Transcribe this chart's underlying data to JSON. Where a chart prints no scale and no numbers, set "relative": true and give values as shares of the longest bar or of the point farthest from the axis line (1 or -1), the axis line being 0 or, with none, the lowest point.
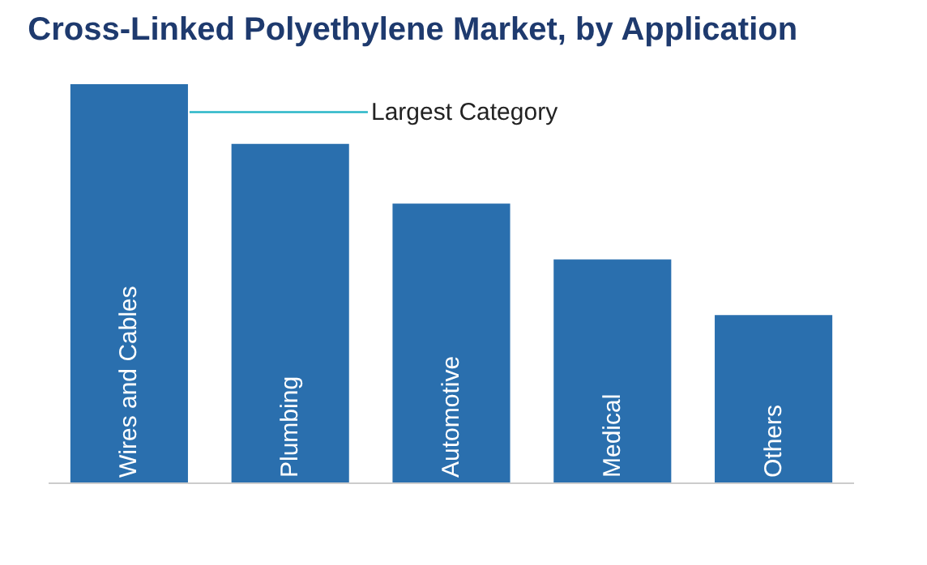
{
  "chart_data": {
    "type": "bar",
    "title": "Cross-Linked Polyethylene Market, by Application",
    "relative": true,
    "categories": [
      "Wires and Cables",
      "Plumbing",
      "Automotive",
      "Medical",
      "Others"
    ],
    "values": [
      1,
      0.85,
      0.7,
      0.56,
      0.42
    ],
    "color": "#2a6fae",
    "annotations": [
      "Largest Category"
    ],
    "legend": false
  }
}
